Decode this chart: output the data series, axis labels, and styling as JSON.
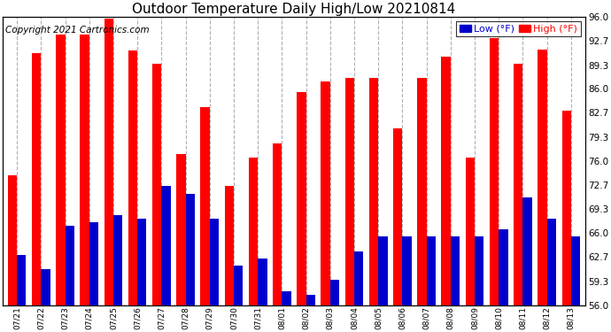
{
  "title": "Outdoor Temperature Daily High/Low 20210814",
  "copyright": "Copyright 2021 Cartronics.com",
  "legend_low": "Low",
  "legend_high": "High",
  "legend_unit": "(°F)",
  "dates": [
    "07/21",
    "07/22",
    "07/23",
    "07/24",
    "07/25",
    "07/26",
    "07/27",
    "07/28",
    "07/29",
    "07/30",
    "07/31",
    "08/01",
    "08/02",
    "08/03",
    "08/04",
    "08/05",
    "08/06",
    "08/07",
    "08/08",
    "08/09",
    "08/10",
    "08/11",
    "08/12",
    "08/13"
  ],
  "highs": [
    74.0,
    91.0,
    93.5,
    93.5,
    95.8,
    91.3,
    89.5,
    77.0,
    83.5,
    72.5,
    76.5,
    78.5,
    85.5,
    87.0,
    87.5,
    87.5,
    80.5,
    87.5,
    90.5,
    76.5,
    93.0,
    89.5,
    91.5,
    83.0
  ],
  "lows": [
    63.0,
    61.0,
    67.0,
    67.5,
    68.5,
    68.0,
    72.5,
    71.5,
    68.0,
    61.5,
    62.5,
    58.0,
    57.5,
    59.5,
    63.5,
    65.5,
    65.5,
    65.5,
    65.5,
    65.5,
    66.5,
    71.0,
    68.0,
    65.5
  ],
  "high_color": "#ff0000",
  "low_color": "#0000cc",
  "bg_color": "#ffffff",
  "grid_color": "#b0b0b0",
  "ymin": 56.0,
  "ymax": 96.0,
  "yticks": [
    56.0,
    59.3,
    62.7,
    66.0,
    69.3,
    72.7,
    76.0,
    79.3,
    82.7,
    86.0,
    89.3,
    92.7,
    96.0
  ],
  "title_fontsize": 11,
  "copyright_fontsize": 7.5,
  "legend_fontsize": 8,
  "bar_width": 0.38
}
